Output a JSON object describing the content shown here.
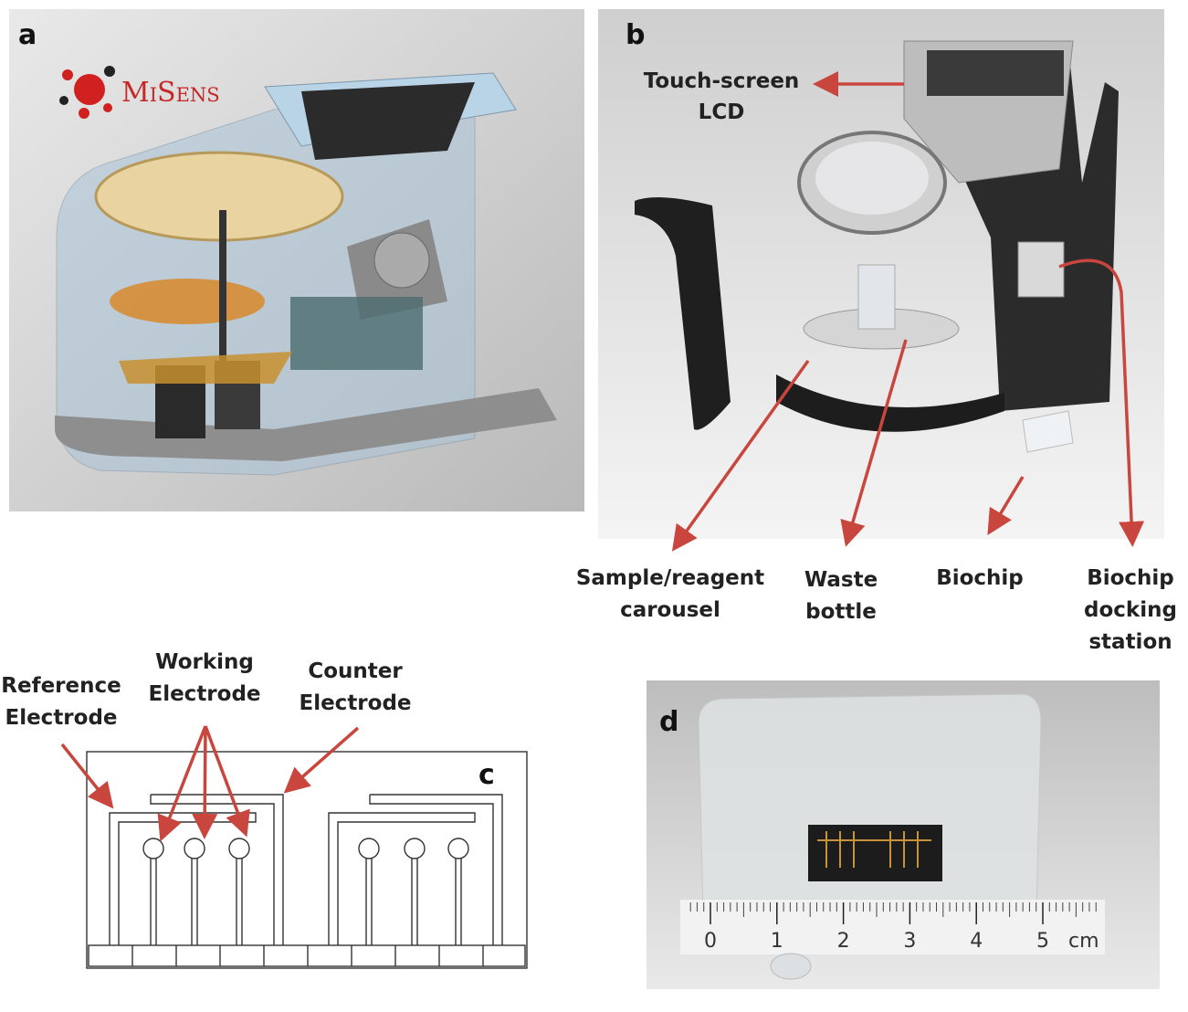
{
  "panels": {
    "a": {
      "label": "a",
      "logo": "MiSens"
    },
    "b": {
      "label": "b",
      "callouts": [
        {
          "lines": [
            "Touch-screen",
            "LCD"
          ]
        },
        {
          "lines": [
            "Sample/reagent",
            "carousel"
          ]
        },
        {
          "lines": [
            "Waste",
            "bottle"
          ]
        },
        {
          "lines": [
            "Biochip"
          ]
        },
        {
          "lines": [
            "Biochip",
            "docking",
            "station"
          ]
        }
      ]
    },
    "c": {
      "label": "c",
      "callouts": [
        {
          "lines": [
            "Reference",
            "Electrode"
          ]
        },
        {
          "lines": [
            "Working",
            "Electrode"
          ]
        },
        {
          "lines": [
            "Counter",
            "Electrode"
          ]
        }
      ]
    },
    "d": {
      "label": "d",
      "ruler": {
        "ticks": [
          0,
          1,
          2,
          3,
          4,
          5
        ],
        "unit": "cm"
      }
    }
  }
}
